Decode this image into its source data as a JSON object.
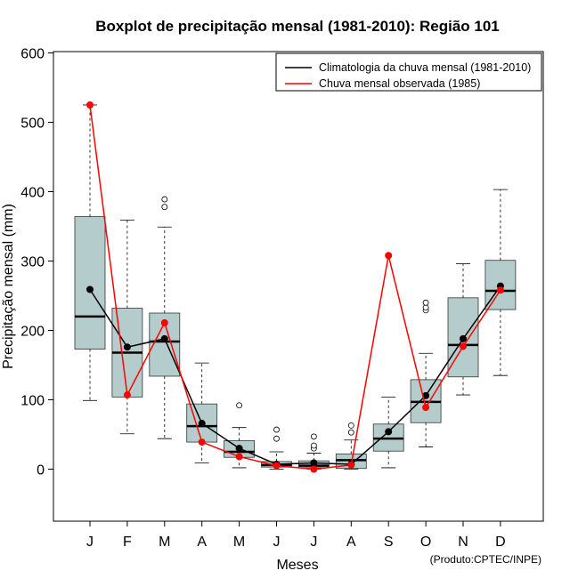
{
  "chart_data": {
    "type": "boxplot",
    "title": "Boxplot de precipitação mensal (1981-2010): Região 101",
    "xlabel": "Meses",
    "ylabel": "Precipitação mensal (mm)",
    "ylim": [
      -75,
      600
    ],
    "yticks": [
      0,
      100,
      200,
      300,
      400,
      500,
      600
    ],
    "categories": [
      "J",
      "F",
      "M",
      "A",
      "M",
      "J",
      "J",
      "A",
      "S",
      "O",
      "N",
      "D"
    ],
    "boxes": [
      {
        "whisker_low": 99,
        "q1": 173,
        "median": 220,
        "q3": 364,
        "whisker_high": 525,
        "outliers": []
      },
      {
        "whisker_low": 51,
        "q1": 104,
        "median": 168,
        "q3": 232,
        "whisker_high": 359,
        "outliers": []
      },
      {
        "whisker_low": 44,
        "q1": 134,
        "median": 184,
        "q3": 225,
        "whisker_high": 349,
        "outliers": [
          378,
          389
        ]
      },
      {
        "whisker_low": 9,
        "q1": 39,
        "median": 62,
        "q3": 94,
        "whisker_high": 153,
        "outliers": []
      },
      {
        "whisker_low": 2,
        "q1": 17,
        "median": 25,
        "q3": 41,
        "whisker_high": 60,
        "outliers": [
          92
        ]
      },
      {
        "whisker_low": 0,
        "q1": 3,
        "median": 6,
        "q3": 11,
        "whisker_high": 25,
        "outliers": [
          44,
          57
        ]
      },
      {
        "whisker_low": 0,
        "q1": 2,
        "median": 5,
        "q3": 12,
        "whisker_high": 23,
        "outliers": [
          30,
          34,
          47
        ]
      },
      {
        "whisker_low": 0,
        "q1": 1,
        "median": 13,
        "q3": 22,
        "whisker_high": 42,
        "outliers": [
          53,
          63
        ]
      },
      {
        "whisker_low": 2,
        "q1": 26,
        "median": 44,
        "q3": 65,
        "whisker_high": 104,
        "outliers": []
      },
      {
        "whisker_low": 32,
        "q1": 67,
        "median": 97,
        "q3": 129,
        "whisker_high": 167,
        "outliers": [
          229,
          233,
          240
        ]
      },
      {
        "whisker_low": 107,
        "q1": 133,
        "median": 179,
        "q3": 247,
        "whisker_high": 296,
        "outliers": []
      },
      {
        "whisker_low": 135,
        "q1": 230,
        "median": 257,
        "q3": 301,
        "whisker_high": 403,
        "outliers": []
      }
    ],
    "series": [
      {
        "name": "Climatologia da chuva mensal (1981-2010)",
        "color": "#000000",
        "values": [
          259,
          176,
          188,
          66,
          30,
          7,
          9,
          7,
          54,
          106,
          188,
          264
        ]
      },
      {
        "name": "Chuva mensal observada (1985)",
        "color": "#ff0000",
        "values": [
          525,
          107,
          211,
          39,
          18,
          5,
          0,
          6,
          308,
          89,
          177,
          258
        ]
      }
    ],
    "legend_position": "top-right",
    "box_fill": "#b4cccc",
    "credit": "(Produto:CPTEC/INPE)"
  }
}
